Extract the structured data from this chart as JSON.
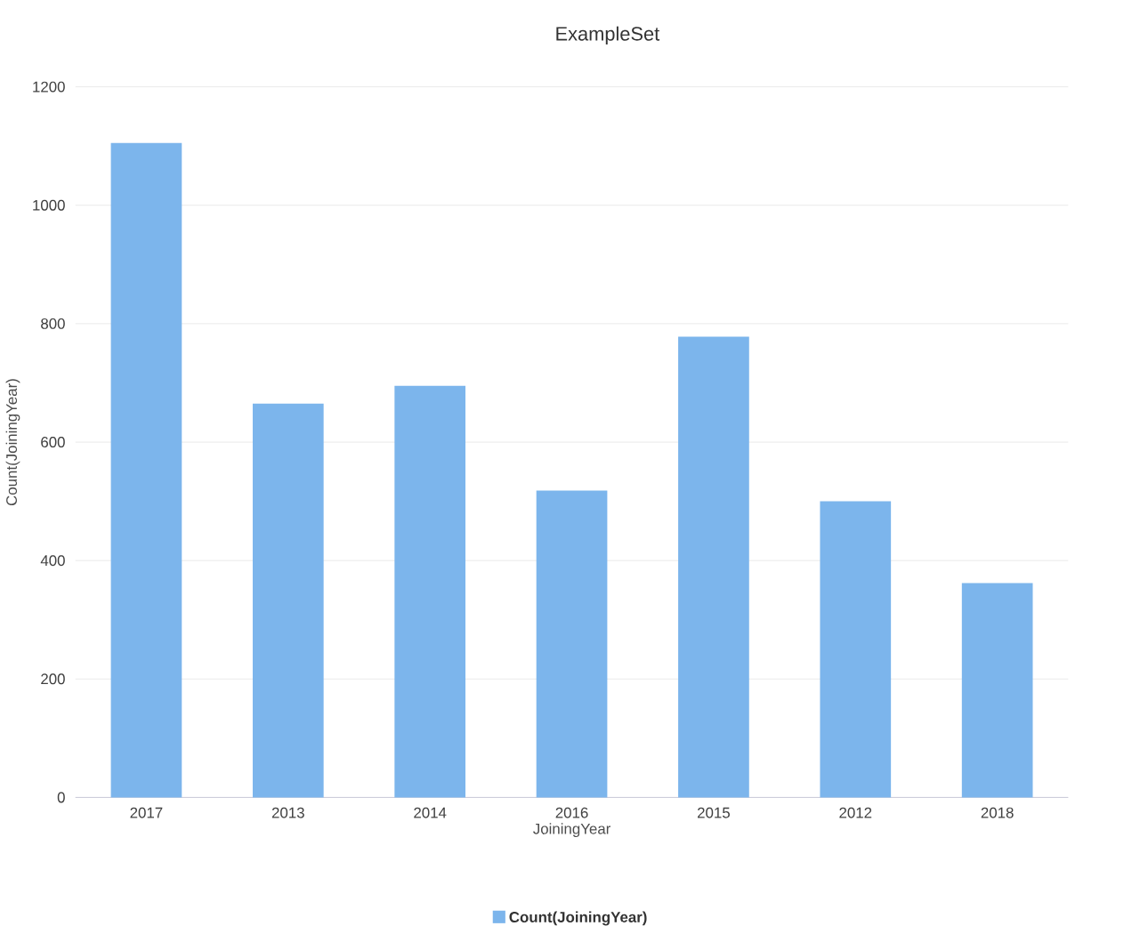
{
  "chart_data": {
    "type": "bar",
    "title": "ExampleSet",
    "xlabel": "JoiningYear",
    "ylabel": "Count(JoiningYear)",
    "categories": [
      "2017",
      "2013",
      "2014",
      "2016",
      "2015",
      "2012",
      "2018"
    ],
    "series": [
      {
        "name": "Count(JoiningYear)",
        "color": "#7cb5ec",
        "values": [
          1105,
          665,
          695,
          518,
          778,
          500,
          362
        ]
      }
    ],
    "ylim": [
      0,
      1200
    ],
    "yticks": [
      0,
      200,
      400,
      600,
      800,
      1000,
      1200
    ],
    "grid": "y",
    "legend": "bottom"
  }
}
